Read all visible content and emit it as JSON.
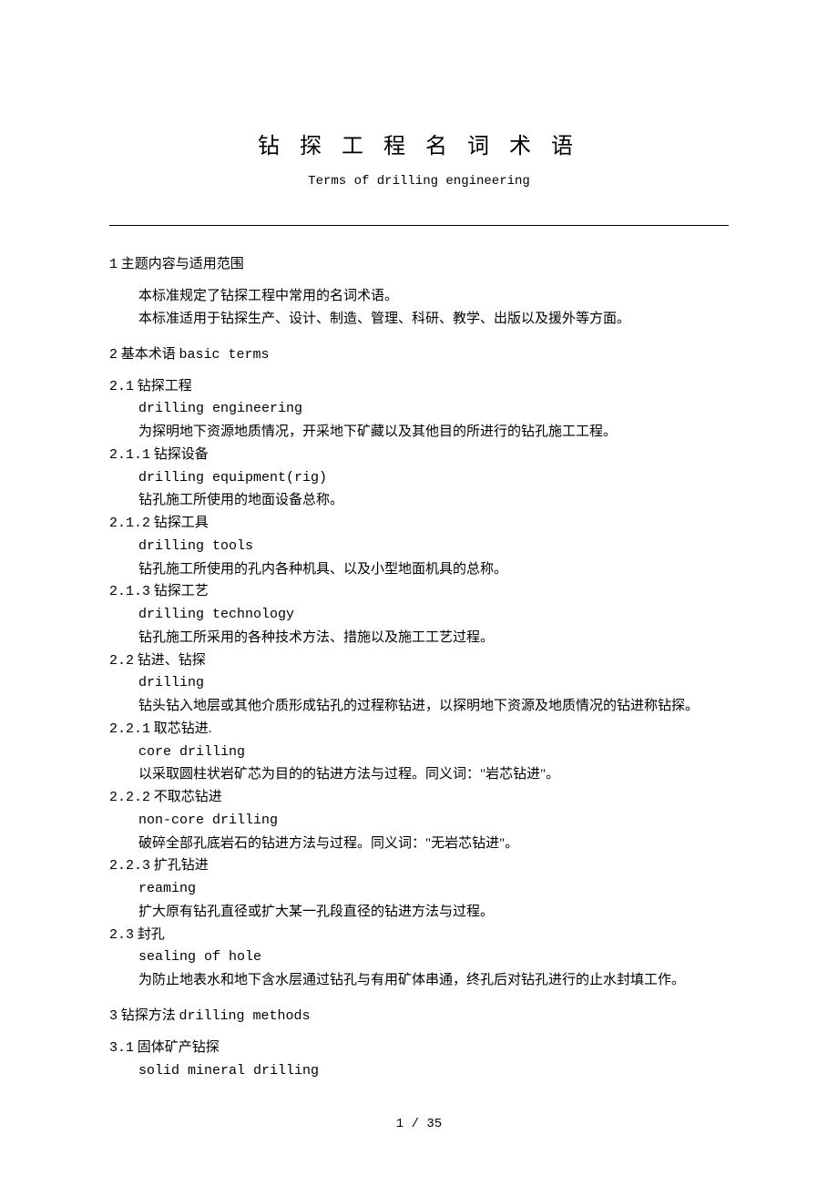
{
  "title": "钻 探 工 程 名 词 术 语",
  "subtitle": "Terms of drilling engineering",
  "section1": {
    "heading_num": "1",
    "heading": "主题内容与适用范围",
    "para1": "本标准规定了钻探工程中常用的名词术语。",
    "para2": "本标准适用于钻探生产、设计、制造、管理、科研、教学、出版以及援外等方面。"
  },
  "section2": {
    "heading_num": "2",
    "heading_cn": "基本术语",
    "heading_en": "basic terms",
    "e2_1": {
      "num": "2.1",
      "title": "钻探工程",
      "en": "drilling engineering",
      "desc": "为探明地下资源地质情况，开采地下矿藏以及其他目的所进行的钻孔施工工程。"
    },
    "e2_1_1": {
      "num": "2.1.1",
      "title": "钻探设备",
      "en": "drilling equipment(rig)",
      "desc": "钻孔施工所使用的地面设备总称。"
    },
    "e2_1_2": {
      "num": "2.1.2",
      "title": "钻探工具",
      "en": "drilling tools",
      "desc": "钻孔施工所使用的孔内各种机具、以及小型地面机具的总称。"
    },
    "e2_1_3": {
      "num": "2.1.3",
      "title": "钻探工艺",
      "en": "drilling technology",
      "desc": "钻孔施工所采用的各种技术方法、措施以及施工工艺过程。"
    },
    "e2_2": {
      "num": "2.2",
      "title": "钻进、钻探",
      "en": "drilling",
      "desc": "钻头钻入地层或其他介质形成钻孔的过程称钻进，以探明地下资源及地质情况的钻进称钻探。"
    },
    "e2_2_1": {
      "num": "2.2.1",
      "title": "取芯钻进.",
      "en": "core drilling",
      "desc": "以采取圆柱状岩矿芯为目的的钻进方法与过程。同义词：\"岩芯钻进\"。"
    },
    "e2_2_2": {
      "num": "2.2.2",
      "title": "不取芯钻进",
      "en": "non-core drilling",
      "desc": "破碎全部孔底岩石的钻进方法与过程。同义词：\"无岩芯钻进\"。"
    },
    "e2_2_3": {
      "num": "2.2.3",
      "title": "扩孔钻进",
      "en": " reaming",
      "desc": " 扩大原有钻孔直径或扩大某一孔段直径的钻进方法与过程。"
    },
    "e2_3": {
      "num": "2.3",
      "title": "封孔",
      "en": "sealing of hole",
      "desc": "为防止地表水和地下含水层通过钻孔与有用矿体串通，终孔后对钻孔进行的止水封填工作。"
    }
  },
  "section3": {
    "heading_num": "3",
    "heading_cn": "钻探方法",
    "heading_en": "drilling methods",
    "e3_1": {
      "num": "3.1",
      "title": "固体矿产钻探",
      "en": "solid mineral drilling"
    }
  },
  "page_number": "1 / 35"
}
